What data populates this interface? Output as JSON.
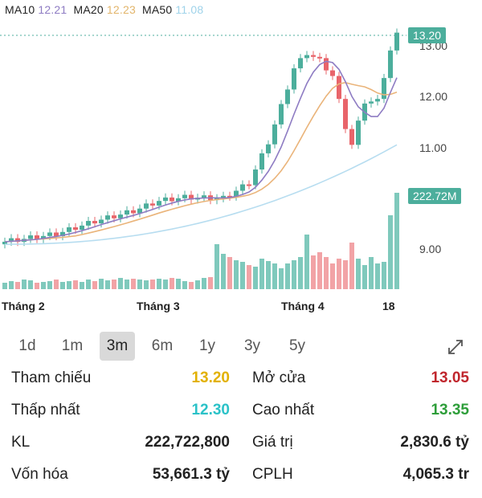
{
  "ma_legend": {
    "ma10_label": "MA10",
    "ma10_value": "12.21",
    "ma10_color": "#8e7cc3",
    "ma20_label": "MA20",
    "ma20_value": "12.23",
    "ma20_color": "#e2b56b",
    "ma50_label": "MA50",
    "ma50_value": "11.08",
    "ma50_color": "#9fd3ea"
  },
  "chart": {
    "price_ticks": [
      "13.00",
      "12.00",
      "11.00",
      "9.00"
    ],
    "x_labels": [
      "Tháng 2",
      "Tháng 3",
      "Tháng 4",
      "18"
    ],
    "current_price_tag": "13.20",
    "volume_tag": "222.72M",
    "up_color": "#4cae9c",
    "down_color": "#e8646a"
  },
  "tabs": [
    {
      "label": "1d",
      "active": false
    },
    {
      "label": "1m",
      "active": false
    },
    {
      "label": "3m",
      "active": true
    },
    {
      "label": "6m",
      "active": false
    },
    {
      "label": "1y",
      "active": false
    },
    {
      "label": "3y",
      "active": false
    },
    {
      "label": "5y",
      "active": false
    }
  ],
  "expand_icon": "expand-icon",
  "stats": {
    "ref_label": "Tham chiếu",
    "ref_value": "13.20",
    "ref_color": "#e2b100",
    "open_label": "Mở cửa",
    "open_value": "13.05",
    "open_color": "#c0262d",
    "low_label": "Thấp nhất",
    "low_value": "12.30",
    "low_color": "#2bc2c8",
    "high_label": "Cao nhất",
    "high_value": "13.35",
    "high_color": "#2e9e3a",
    "vol_label": "KL",
    "vol_value": "222,722,800",
    "val_label": "Giá trị",
    "val_value": "2,830.6 tỷ",
    "cap_label": "Vốn hóa",
    "cap_value": "53,661.3 tỷ",
    "cplh_label": "CPLH",
    "cplh_value": "4,065.3 tr"
  }
}
